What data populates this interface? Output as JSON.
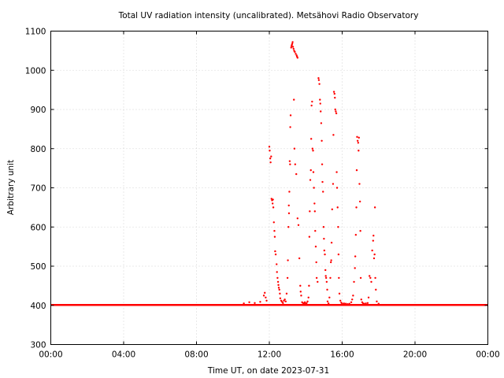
{
  "chart_data": {
    "type": "scatter",
    "title": "Total UV radiation intensity (uncalibrated). Metsähovi Radio Observatory",
    "xlabel": "Time UT, on date 2023-07-31",
    "ylabel": "Arbitrary unit",
    "xlim": [
      0,
      24
    ],
    "ylim": [
      300,
      1100
    ],
    "x_ticks": [
      {
        "value": 0,
        "label": "00:00"
      },
      {
        "value": 4,
        "label": "04:00"
      },
      {
        "value": 8,
        "label": "08:00"
      },
      {
        "value": 12,
        "label": "12:00"
      },
      {
        "value": 16,
        "label": "16:00"
      },
      {
        "value": 20,
        "label": "20:00"
      },
      {
        "value": 24,
        "label": "00:00"
      }
    ],
    "y_ticks": [
      {
        "value": 300,
        "label": "300"
      },
      {
        "value": 400,
        "label": "400"
      },
      {
        "value": 500,
        "label": "500"
      },
      {
        "value": 600,
        "label": "600"
      },
      {
        "value": 700,
        "label": "700"
      },
      {
        "value": 800,
        "label": "800"
      },
      {
        "value": 900,
        "label": "900"
      },
      {
        "value": 1000,
        "label": "1000"
      },
      {
        "value": 1100,
        "label": "1100"
      }
    ],
    "grid": true,
    "series": [
      {
        "color": "#ff0000",
        "baseline": {
          "x_ranges": [
            [
              0,
              24
            ]
          ],
          "y": 401
        },
        "points": [
          [
            10.6,
            405
          ],
          [
            10.9,
            408
          ],
          [
            11.2,
            406
          ],
          [
            11.5,
            409
          ],
          [
            11.7,
            425
          ],
          [
            11.75,
            432
          ],
          [
            11.8,
            420
          ],
          [
            11.85,
            412
          ],
          [
            12.0,
            805
          ],
          [
            12.02,
            795
          ],
          [
            12.05,
            775
          ],
          [
            12.07,
            765
          ],
          [
            12.1,
            780
          ],
          [
            12.12,
            672
          ],
          [
            12.15,
            668
          ],
          [
            12.18,
            660
          ],
          [
            12.2,
            670
          ],
          [
            12.22,
            650
          ],
          [
            12.25,
            612
          ],
          [
            12.28,
            590
          ],
          [
            12.3,
            575
          ],
          [
            12.32,
            538
          ],
          [
            12.35,
            530
          ],
          [
            12.4,
            505
          ],
          [
            12.42,
            485
          ],
          [
            12.45,
            470
          ],
          [
            12.48,
            460
          ],
          [
            12.5,
            452
          ],
          [
            12.52,
            445
          ],
          [
            12.55,
            440
          ],
          [
            12.58,
            430
          ],
          [
            12.6,
            418
          ],
          [
            12.65,
            412
          ],
          [
            12.7,
            409
          ],
          [
            12.75,
            406
          ],
          [
            12.8,
            412
          ],
          [
            12.85,
            415
          ],
          [
            12.9,
            410
          ],
          [
            12.95,
            430
          ],
          [
            13.0,
            470
          ],
          [
            13.02,
            515
          ],
          [
            13.05,
            600
          ],
          [
            13.07,
            655
          ],
          [
            13.08,
            635
          ],
          [
            13.1,
            690
          ],
          [
            13.12,
            768
          ],
          [
            13.14,
            760
          ],
          [
            13.15,
            855
          ],
          [
            13.17,
            885
          ],
          [
            13.2,
            1058
          ],
          [
            13.22,
            1062
          ],
          [
            13.24,
            1065
          ],
          [
            13.26,
            1068
          ],
          [
            13.28,
            1072
          ],
          [
            13.3,
            1060
          ],
          [
            13.33,
            1055
          ],
          [
            13.36,
            1050
          ],
          [
            13.4,
            1047
          ],
          [
            13.45,
            1042
          ],
          [
            13.5,
            1038
          ],
          [
            13.52,
            1035
          ],
          [
            13.55,
            1032
          ],
          [
            13.35,
            925
          ],
          [
            13.38,
            800
          ],
          [
            13.42,
            760
          ],
          [
            13.48,
            735
          ],
          [
            13.55,
            622
          ],
          [
            13.6,
            605
          ],
          [
            13.65,
            520
          ],
          [
            13.7,
            450
          ],
          [
            13.72,
            435
          ],
          [
            13.75,
            425
          ],
          [
            13.8,
            408
          ],
          [
            13.85,
            406
          ],
          [
            13.9,
            405
          ],
          [
            13.95,
            408
          ],
          [
            14.0,
            404
          ],
          [
            14.05,
            406
          ],
          [
            14.1,
            410
          ],
          [
            14.15,
            420
          ],
          [
            14.18,
            450
          ],
          [
            14.2,
            575
          ],
          [
            14.22,
            640
          ],
          [
            14.25,
            720
          ],
          [
            14.28,
            745
          ],
          [
            14.3,
            825
          ],
          [
            14.32,
            910
          ],
          [
            14.35,
            920
          ],
          [
            14.37,
            800
          ],
          [
            14.4,
            795
          ],
          [
            14.42,
            740
          ],
          [
            14.45,
            700
          ],
          [
            14.48,
            660
          ],
          [
            14.5,
            640
          ],
          [
            14.52,
            590
          ],
          [
            14.55,
            550
          ],
          [
            14.58,
            510
          ],
          [
            14.6,
            470
          ],
          [
            14.65,
            460
          ],
          [
            14.7,
            980
          ],
          [
            14.72,
            975
          ],
          [
            14.75,
            965
          ],
          [
            14.78,
            925
          ],
          [
            14.8,
            915
          ],
          [
            14.82,
            895
          ],
          [
            14.85,
            865
          ],
          [
            14.88,
            820
          ],
          [
            14.9,
            760
          ],
          [
            14.92,
            715
          ],
          [
            14.95,
            690
          ],
          [
            14.98,
            600
          ],
          [
            15.0,
            570
          ],
          [
            15.02,
            540
          ],
          [
            15.05,
            530
          ],
          [
            15.08,
            490
          ],
          [
            15.1,
            475
          ],
          [
            15.12,
            470
          ],
          [
            15.15,
            460
          ],
          [
            15.18,
            440
          ],
          [
            15.2,
            410
          ],
          [
            15.25,
            405
          ],
          [
            15.3,
            420
          ],
          [
            15.35,
            470
          ],
          [
            15.38,
            510
          ],
          [
            15.4,
            515
          ],
          [
            15.42,
            560
          ],
          [
            15.45,
            645
          ],
          [
            15.5,
            710
          ],
          [
            15.52,
            835
          ],
          [
            15.55,
            945
          ],
          [
            15.58,
            940
          ],
          [
            15.6,
            930
          ],
          [
            15.62,
            900
          ],
          [
            15.65,
            895
          ],
          [
            15.68,
            890
          ],
          [
            15.7,
            740
          ],
          [
            15.72,
            700
          ],
          [
            15.75,
            650
          ],
          [
            15.78,
            600
          ],
          [
            15.8,
            530
          ],
          [
            15.82,
            470
          ],
          [
            15.85,
            430
          ],
          [
            15.9,
            412
          ],
          [
            15.95,
            407
          ],
          [
            16.0,
            404
          ],
          [
            16.1,
            405
          ],
          [
            16.2,
            404
          ],
          [
            16.3,
            403
          ],
          [
            16.4,
            404
          ],
          [
            16.5,
            408
          ],
          [
            16.55,
            415
          ],
          [
            16.6,
            425
          ],
          [
            16.65,
            460
          ],
          [
            16.7,
            495
          ],
          [
            16.72,
            525
          ],
          [
            16.75,
            580
          ],
          [
            16.78,
            650
          ],
          [
            16.8,
            745
          ],
          [
            16.82,
            830
          ],
          [
            16.85,
            820
          ],
          [
            16.88,
            815
          ],
          [
            16.9,
            795
          ],
          [
            16.92,
            828
          ],
          [
            16.95,
            710
          ],
          [
            16.98,
            665
          ],
          [
            17.0,
            590
          ],
          [
            17.02,
            470
          ],
          [
            17.05,
            415
          ],
          [
            17.1,
            408
          ],
          [
            17.15,
            405
          ],
          [
            17.2,
            404
          ],
          [
            17.3,
            405
          ],
          [
            17.4,
            406
          ],
          [
            17.45,
            420
          ],
          [
            17.5,
            475
          ],
          [
            17.55,
            470
          ],
          [
            17.6,
            460
          ],
          [
            17.65,
            540
          ],
          [
            17.7,
            565
          ],
          [
            17.72,
            578
          ],
          [
            17.75,
            520
          ],
          [
            17.78,
            530
          ],
          [
            17.8,
            650
          ],
          [
            17.82,
            470
          ],
          [
            17.85,
            440
          ],
          [
            17.9,
            410
          ],
          [
            18.0,
            404
          ]
        ]
      }
    ]
  }
}
